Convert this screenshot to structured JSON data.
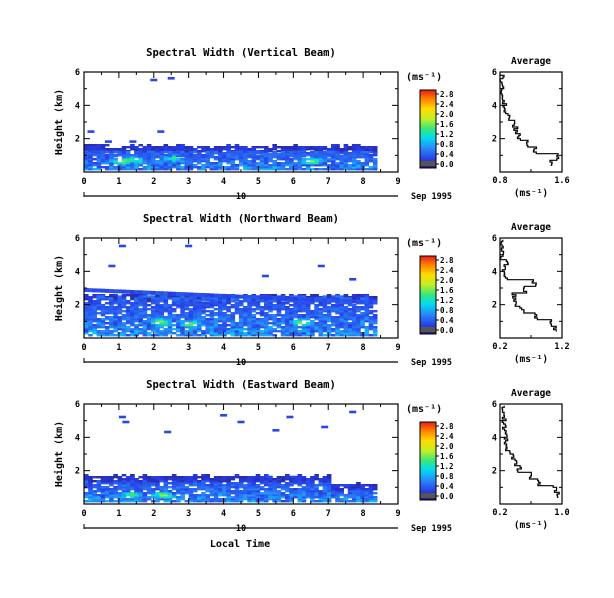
{
  "figure": {
    "xlabel_bottom": "Local Time",
    "date_label": "Sep 1995",
    "day_label": "10",
    "units_label": "(ms⁻¹)",
    "average_title": "Average",
    "average_xlabel": "(ms⁻¹)"
  },
  "chart_data": [
    {
      "type": "heatmap",
      "title": "Spectral Width (Vertical Beam)",
      "xlabel": "",
      "ylabel": "Height (km)",
      "xlim": [
        0,
        9
      ],
      "ylim": [
        0,
        6
      ],
      "x_ticks": [
        "0",
        "1",
        "2",
        "3",
        "4",
        "5",
        "6",
        "7",
        "8",
        "9"
      ],
      "y_ticks": [
        "2",
        "4",
        "6"
      ],
      "colorbar": {
        "ticks": [
          "0.0",
          "0.4",
          "0.8",
          "1.2",
          "1.6",
          "2.0",
          "2.4",
          "2.8"
        ],
        "range": [
          0,
          2.8
        ]
      },
      "hot_spots": [
        [
          1.0,
          0.6
        ],
        [
          1.4,
          0.7
        ],
        [
          2.5,
          0.8
        ],
        [
          6.5,
          0.6
        ]
      ],
      "isolated": [
        [
          1.9,
          5.6
        ],
        [
          2.4,
          5.7
        ],
        [
          0.1,
          2.5
        ],
        [
          2.1,
          2.5
        ],
        [
          0.6,
          1.9
        ],
        [
          1.3,
          1.9
        ]
      ],
      "profile": {
        "xlim": [
          0.8,
          1.6
        ],
        "x_ticks": [
          "0.8",
          "1.6"
        ],
        "y_ticks": [
          "2",
          "4",
          "6"
        ],
        "heights": [
          0.4,
          0.8,
          1.2,
          1.6,
          2.0,
          2.4,
          2.8,
          3.2,
          3.6,
          4.0,
          4.4,
          4.8,
          5.2,
          5.6
        ],
        "values": [
          1.45,
          1.55,
          1.25,
          1.15,
          1.05,
          1.0,
          0.98,
          0.9,
          0.85,
          0.86,
          0.84,
          0.82,
          0.82,
          0.82
        ]
      }
    },
    {
      "type": "heatmap",
      "title": "Spectral Width (Northward Beam)",
      "xlabel": "",
      "ylabel": "Height (km)",
      "xlim": [
        0,
        9
      ],
      "ylim": [
        0,
        6
      ],
      "x_ticks": [
        "0",
        "1",
        "2",
        "3",
        "4",
        "5",
        "6",
        "7",
        "8",
        "9"
      ],
      "y_ticks": [
        "2",
        "4",
        "6"
      ],
      "colorbar": {
        "ticks": [
          "0.0",
          "0.4",
          "0.8",
          "1.2",
          "1.6",
          "2.0",
          "2.4",
          "2.8"
        ],
        "range": [
          0,
          2.8
        ]
      },
      "hot_spots": [
        [
          2.1,
          0.9
        ],
        [
          3.0,
          0.8
        ],
        [
          6.2,
          0.9
        ]
      ],
      "isolated": [
        [
          1.0,
          5.6
        ],
        [
          2.9,
          5.6
        ],
        [
          0.7,
          4.4
        ],
        [
          6.7,
          4.4
        ],
        [
          5.1,
          3.8
        ],
        [
          7.6,
          3.6
        ]
      ],
      "profile": {
        "xlim": [
          0.2,
          1.2
        ],
        "x_ticks": [
          "0.2",
          "1.2"
        ],
        "y_ticks": [
          "2",
          "4",
          "6"
        ],
        "heights": [
          0.4,
          0.8,
          1.2,
          1.6,
          2.0,
          2.4,
          2.8,
          3.2,
          3.6,
          4.0,
          4.4,
          4.8,
          5.2,
          5.6
        ],
        "values": [
          1.1,
          1.0,
          0.8,
          0.55,
          0.45,
          0.42,
          0.6,
          0.75,
          0.3,
          0.25,
          0.3,
          0.22,
          0.22,
          0.22
        ]
      }
    },
    {
      "type": "heatmap",
      "title": "Spectral Width (Eastward Beam)",
      "xlabel": "Local Time",
      "ylabel": "Height (km)",
      "xlim": [
        0,
        9
      ],
      "ylim": [
        0,
        6
      ],
      "x_ticks": [
        "0",
        "1",
        "2",
        "3",
        "4",
        "5",
        "6",
        "7",
        "8",
        "9"
      ],
      "y_ticks": [
        "2",
        "4",
        "6"
      ],
      "colorbar": {
        "ticks": [
          "0.0",
          "0.4",
          "0.8",
          "1.2",
          "1.6",
          "2.0",
          "2.4",
          "2.8"
        ],
        "range": [
          0,
          2.8
        ]
      },
      "hot_spots": [
        [
          1.3,
          0.5
        ],
        [
          2.2,
          0.5
        ]
      ],
      "isolated": [
        [
          1.0,
          5.3
        ],
        [
          1.1,
          5.0
        ],
        [
          2.3,
          4.4
        ],
        [
          3.9,
          5.4
        ],
        [
          4.4,
          5.0
        ],
        [
          5.8,
          5.3
        ],
        [
          7.6,
          5.6
        ],
        [
          5.4,
          4.5
        ],
        [
          6.8,
          4.7
        ],
        [
          5.2,
          1.7
        ],
        [
          5.9,
          1.7
        ],
        [
          7.4,
          1.2
        ]
      ],
      "profile": {
        "xlim": [
          0.2,
          1.0
        ],
        "x_ticks": [
          "0.2",
          "1.0"
        ],
        "y_ticks": [
          "2",
          "4",
          "6"
        ],
        "heights": [
          0.4,
          0.8,
          1.2,
          1.6,
          2.0,
          2.4,
          2.8,
          3.2,
          3.6,
          4.0,
          4.4,
          4.8,
          5.2,
          5.6
        ],
        "values": [
          0.95,
          0.9,
          0.7,
          0.6,
          0.45,
          0.4,
          0.35,
          0.3,
          0.28,
          0.27,
          0.26,
          0.25,
          0.25,
          0.25
        ]
      }
    }
  ]
}
